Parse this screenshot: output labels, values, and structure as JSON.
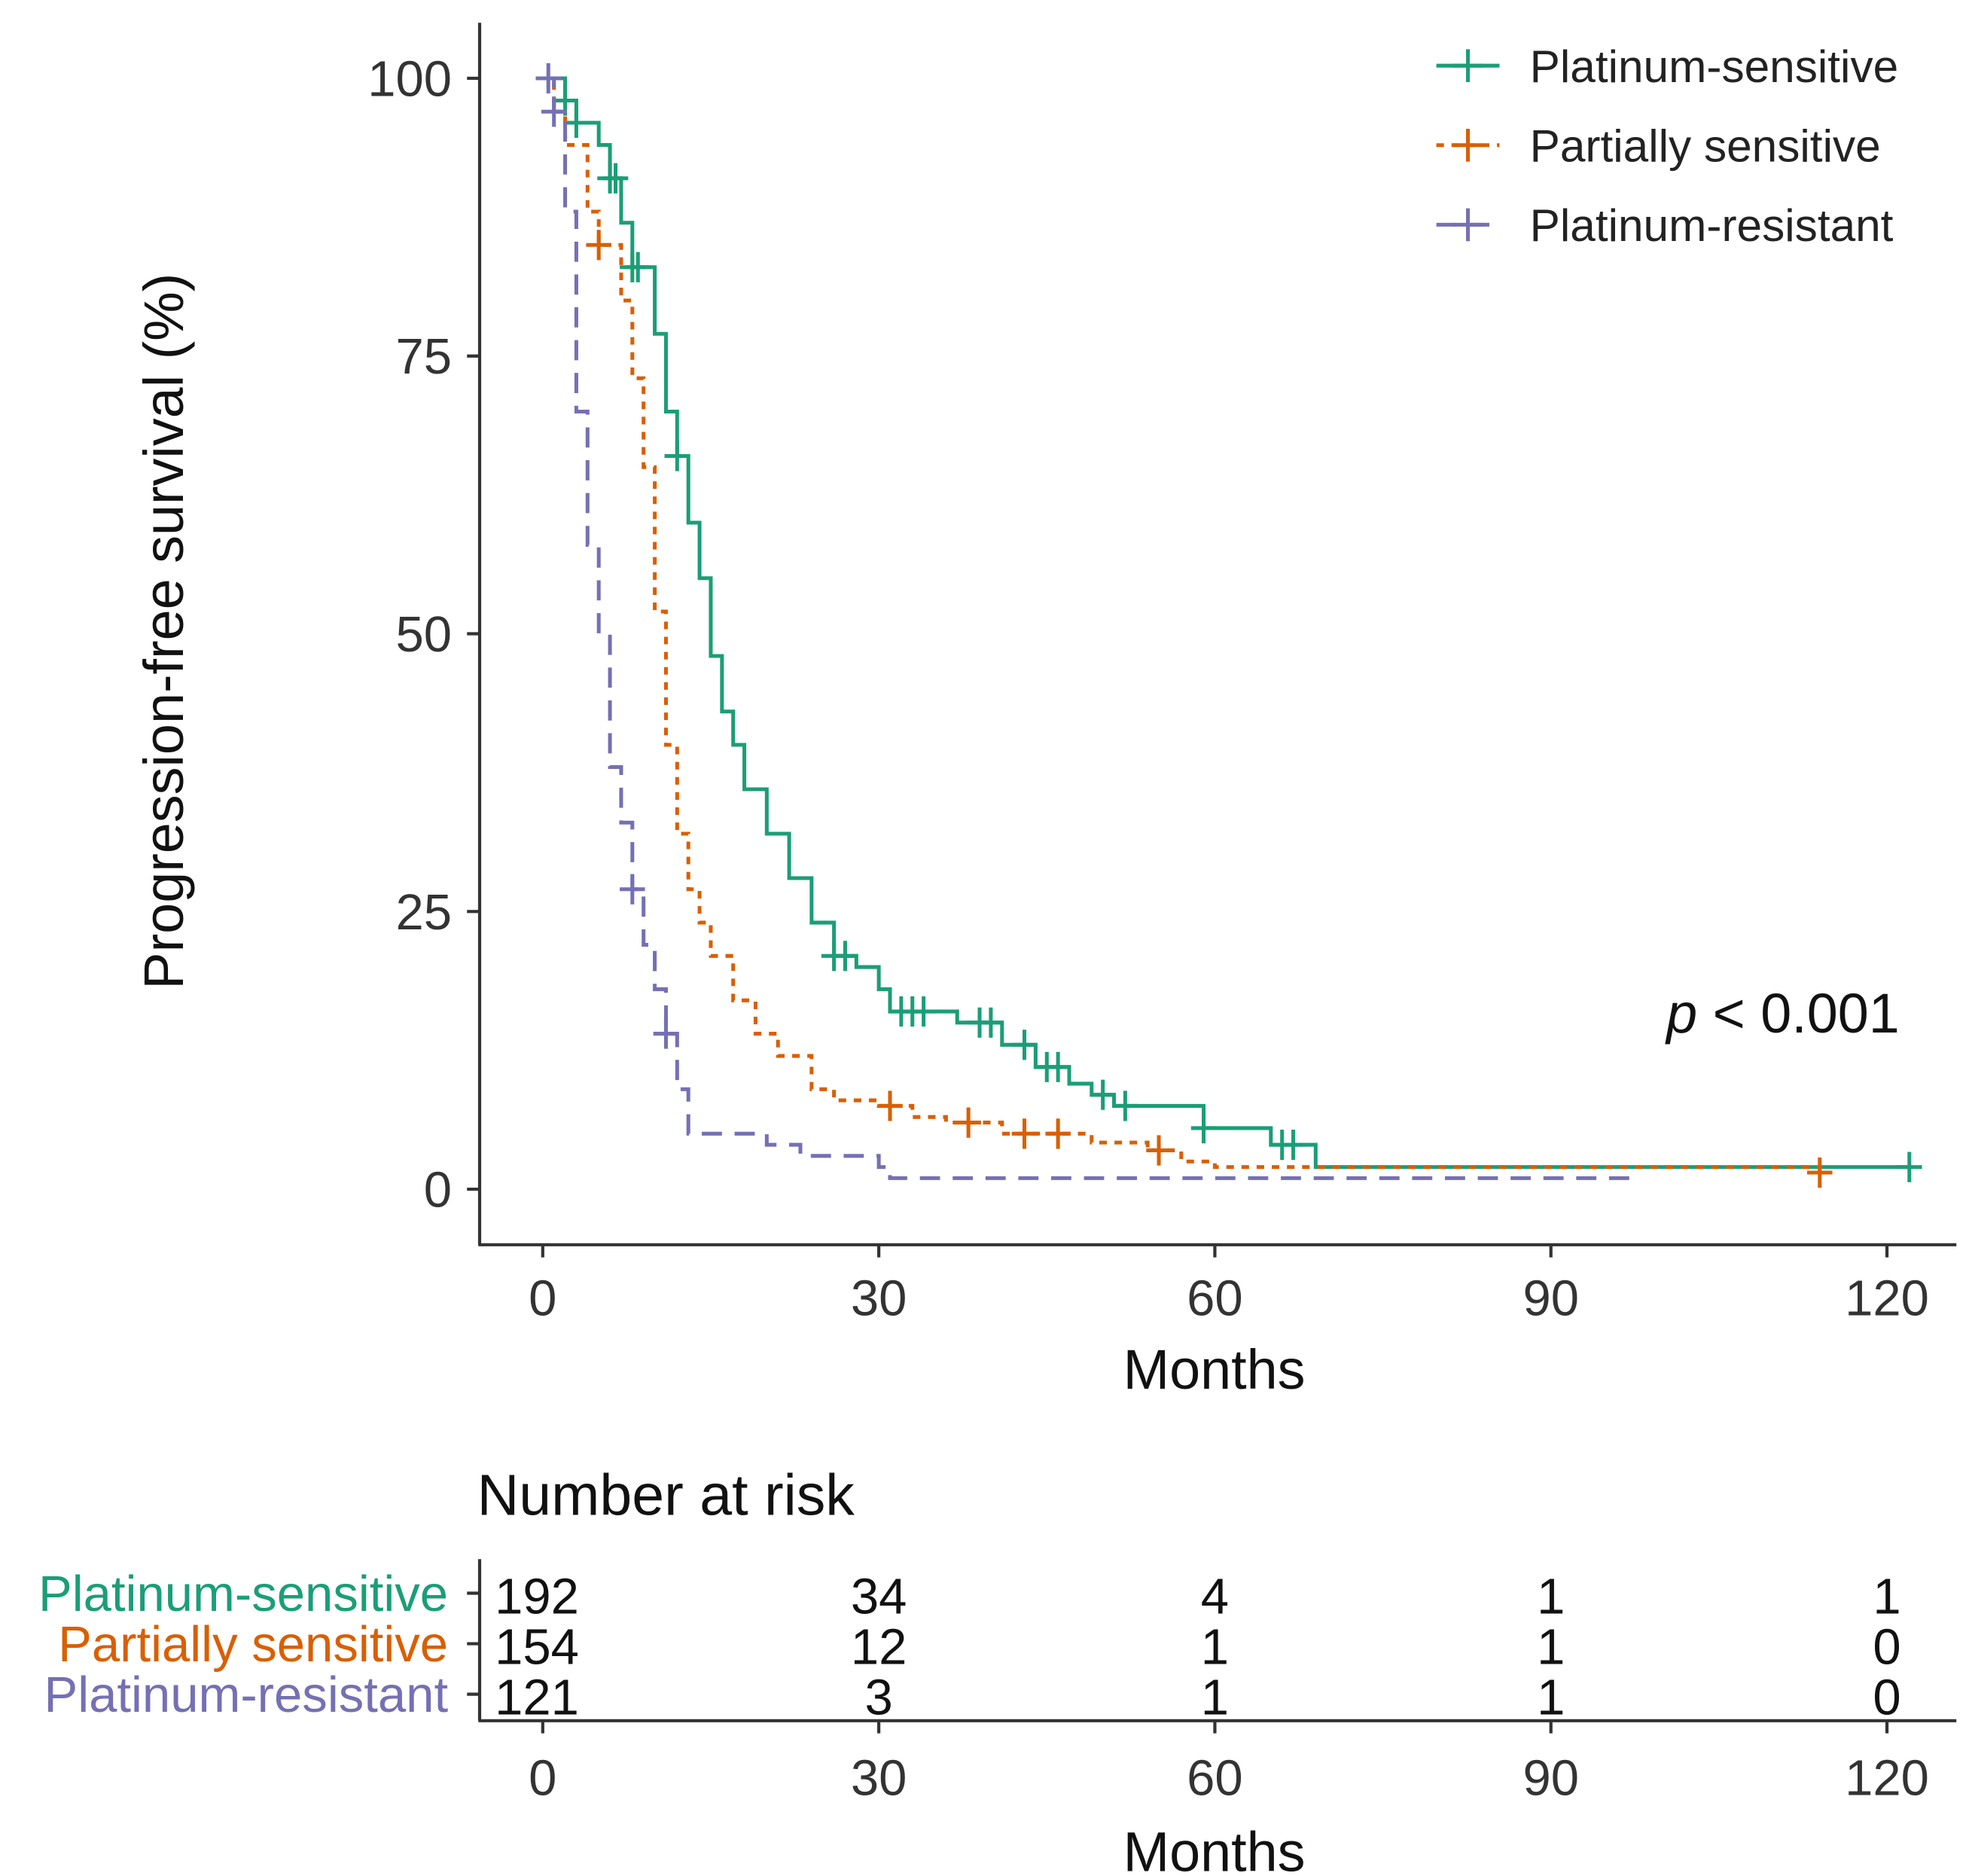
{
  "chart_data": {
    "type": "line",
    "subtype": "kaplan-meier",
    "xlabel": "Months",
    "ylabel": "Progression-free survival (%)",
    "xlim": [
      0,
      120
    ],
    "ylim": [
      0,
      100
    ],
    "xticks": [
      0,
      30,
      60,
      90,
      120
    ],
    "yticks": [
      0,
      25,
      50,
      75,
      100
    ],
    "xtick_labels": [
      "0",
      "30",
      "60",
      "90",
      "120"
    ],
    "ytick_labels": [
      "0",
      "25",
      "50",
      "75",
      "100"
    ],
    "legend_position": "top-right",
    "annotation": {
      "p": "p",
      "rest": " < 0.001"
    },
    "series": [
      {
        "name": "Platinum-sensitive",
        "color": "#1b9e77",
        "dash": "solid",
        "steps": [
          [
            0,
            100
          ],
          [
            2,
            98
          ],
          [
            3,
            96
          ],
          [
            5,
            94
          ],
          [
            6,
            91
          ],
          [
            7,
            87
          ],
          [
            8,
            83
          ],
          [
            10,
            77
          ],
          [
            11,
            70
          ],
          [
            12,
            66
          ],
          [
            13,
            60
          ],
          [
            14,
            55
          ],
          [
            15,
            48
          ],
          [
            16,
            43
          ],
          [
            17,
            40
          ],
          [
            18,
            36
          ],
          [
            20,
            32
          ],
          [
            22,
            28
          ],
          [
            24,
            24
          ],
          [
            26,
            21
          ],
          [
            28,
            20
          ],
          [
            30,
            18
          ],
          [
            31,
            16
          ],
          [
            37,
            15
          ],
          [
            41,
            13
          ],
          [
            44,
            11
          ],
          [
            47,
            9.5
          ],
          [
            49,
            8.5
          ],
          [
            51,
            7.5
          ],
          [
            59,
            5.5
          ],
          [
            65,
            4
          ],
          [
            69,
            2
          ],
          [
            122,
            2
          ]
        ],
        "censored": [
          2,
          3,
          6,
          6.5,
          8,
          8.5,
          12,
          26,
          27,
          32,
          33,
          34,
          39,
          40,
          43,
          45,
          46,
          50,
          52,
          59,
          66,
          67,
          122
        ]
      },
      {
        "name": "Partially sensitive",
        "color": "#d95f02",
        "dash": "dotted",
        "steps": [
          [
            0,
            100
          ],
          [
            1,
            97
          ],
          [
            2,
            94
          ],
          [
            4,
            88
          ],
          [
            5,
            85
          ],
          [
            7,
            80
          ],
          [
            8,
            73
          ],
          [
            9,
            65
          ],
          [
            10,
            52
          ],
          [
            11,
            40
          ],
          [
            12,
            32
          ],
          [
            13,
            27
          ],
          [
            14,
            24
          ],
          [
            15,
            21
          ],
          [
            17,
            17
          ],
          [
            19,
            14
          ],
          [
            21,
            12
          ],
          [
            24,
            9
          ],
          [
            26,
            8
          ],
          [
            30,
            7.5
          ],
          [
            33,
            6.5
          ],
          [
            36,
            6
          ],
          [
            41,
            5
          ],
          [
            49,
            4.2
          ],
          [
            54,
            3.5
          ],
          [
            57,
            2.5
          ],
          [
            60,
            2
          ],
          [
            114,
            1.5
          ]
        ],
        "censored": [
          5,
          31,
          38,
          43,
          46,
          55,
          114
        ]
      },
      {
        "name": "Platinum-resistant",
        "color": "#7570b3",
        "dash": "dashed",
        "steps": [
          [
            0,
            100
          ],
          [
            1,
            97
          ],
          [
            2,
            88
          ],
          [
            3,
            70
          ],
          [
            4,
            58
          ],
          [
            5,
            50
          ],
          [
            6,
            38
          ],
          [
            7,
            33
          ],
          [
            8,
            27
          ],
          [
            9,
            22
          ],
          [
            10,
            18
          ],
          [
            11,
            14
          ],
          [
            12,
            9
          ],
          [
            13,
            5
          ],
          [
            20,
            4
          ],
          [
            23,
            3
          ],
          [
            30,
            2
          ],
          [
            31,
            1
          ],
          [
            97,
            1
          ]
        ],
        "censored": [
          0.5,
          1,
          8,
          11
        ]
      }
    ],
    "risk_table": {
      "title": "Number at risk",
      "xlabel": "Months",
      "times": [
        0,
        30,
        60,
        90,
        120
      ],
      "time_labels": [
        "0",
        "30",
        "60",
        "90",
        "120"
      ],
      "rows": [
        {
          "name": "Platinum-sensitive",
          "color": "#1b9e77",
          "counts": [
            "192",
            "34",
            "4",
            "1",
            "1"
          ]
        },
        {
          "name": "Partially sensitive",
          "color": "#d95f02",
          "counts": [
            "154",
            "12",
            "1",
            "1",
            "0"
          ]
        },
        {
          "name": "Platinum-resistant",
          "color": "#7570b3",
          "counts": [
            "121",
            "3",
            "1",
            "1",
            "0"
          ]
        }
      ]
    }
  }
}
